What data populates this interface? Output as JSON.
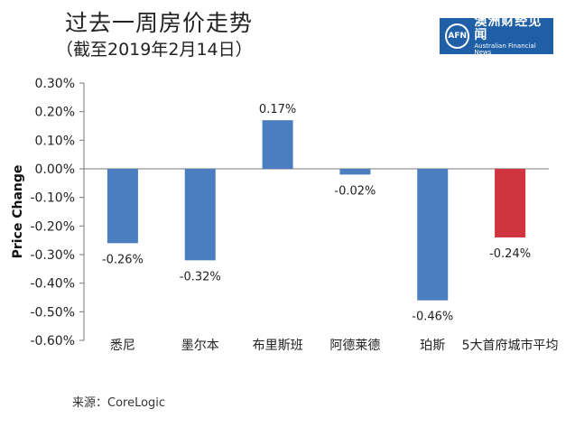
{
  "header": {
    "title": "过去一周房价走势",
    "subtitle": "（截至2019年2月14日）"
  },
  "logo": {
    "mark": "AFN",
    "name_cn": "澳洲财经见闻",
    "name_en": "Australian Financial News"
  },
  "source": "来源：CoreLogic",
  "colors": {
    "bar": "#4a7ec0",
    "highlight": "#d0343f",
    "axis": "#777777",
    "logo_bg": "#1f5fa8"
  },
  "chart_data": {
    "type": "bar",
    "title": "过去一周房价走势",
    "xlabel": "",
    "ylabel": "Price Change",
    "categories": [
      "悉尼",
      "墨尔本",
      "布里斯班",
      "阿德莱德",
      "珀斯",
      "5大首府城市平均"
    ],
    "values": [
      -0.26,
      -0.32,
      0.17,
      -0.02,
      -0.46,
      -0.24
    ],
    "data_labels": [
      "-0.26%",
      "-0.32%",
      "0.17%",
      "-0.02%",
      "-0.46%",
      "-0.24%"
    ],
    "highlight_index": 5,
    "ylim": [
      -0.6,
      0.3
    ],
    "yticks": [
      0.3,
      0.2,
      0.1,
      0.0,
      -0.1,
      -0.2,
      -0.3,
      -0.4,
      -0.5,
      -0.6
    ],
    "ytick_labels": [
      "0.30%",
      "0.20%",
      "0.10%",
      "0.00%",
      "-0.10%",
      "-0.20%",
      "-0.30%",
      "-0.40%",
      "-0.50%",
      "-0.60%"
    ],
    "grid": false
  }
}
